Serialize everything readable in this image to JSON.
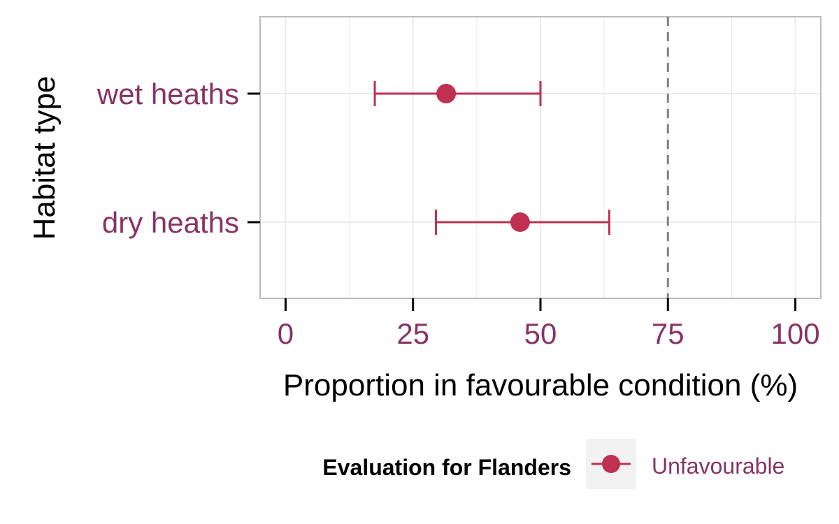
{
  "chart_data": {
    "type": "scatter",
    "title": "",
    "xlabel": "Proportion in favourable condition (%)",
    "ylabel": "Habitat type",
    "xlim": [
      -5,
      105
    ],
    "x_ticks": [
      0,
      25,
      50,
      75,
      100
    ],
    "x_tick_labels": [
      "0",
      "25",
      "50",
      "75",
      "100"
    ],
    "categories": [
      "wet heaths",
      "dry heaths"
    ],
    "series": [
      {
        "name": "Unfavourable",
        "points": [
          {
            "category": "wet heaths",
            "value": 31.5,
            "lower": 17.5,
            "upper": 50
          },
          {
            "category": "dry heaths",
            "value": 46,
            "lower": 29.5,
            "upper": 63.5
          }
        ]
      }
    ],
    "reference_line": {
      "x": 75,
      "style": "dashed"
    },
    "grid": true,
    "legend": {
      "title": "Evaluation for Flanders",
      "placement": "bottom"
    },
    "colors": {
      "point": "#c03050",
      "label": "#883366",
      "reference": "#808080",
      "panel_border": "#bbbbbb",
      "grid": "#ebebeb",
      "legend_key_bg": "#f2f2f2"
    }
  }
}
